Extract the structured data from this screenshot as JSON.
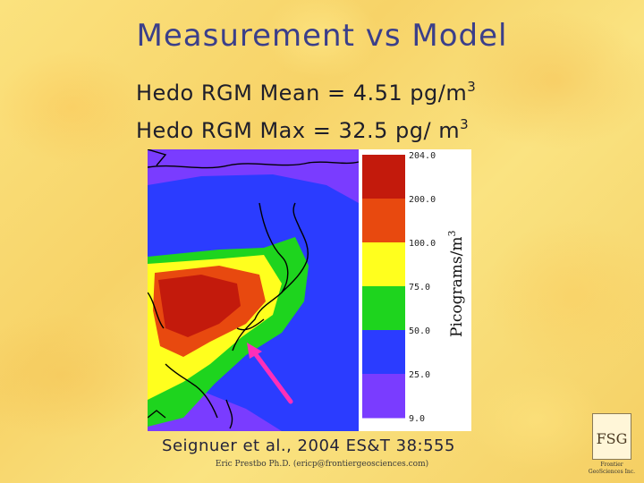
{
  "slide": {
    "title": "Measurement vs Model",
    "stats": [
      {
        "text": "Hedo RGM Mean = 4.51 pg/m",
        "sup": "3"
      },
      {
        "text": "Hedo RGM Max = 32.5 pg/ m",
        "sup": "3"
      }
    ],
    "citation": "Seignuer et al., 2004 ES&T 38:555",
    "footer": "Eric Prestbo Ph.D. (ericp@frontiergeosciences.com)"
  },
  "colorbar": {
    "label": "Picograms/m",
    "label_sup": "3",
    "ticks": [
      "204.0",
      "200.0",
      "100.0",
      "75.0",
      "50.0",
      "25.0",
      "9.0"
    ],
    "colors": [
      "#c31a0c",
      "#e8490f",
      "#ffff1e",
      "#1ed41e",
      "#2b3cff",
      "#7a3cff"
    ]
  },
  "logo": {
    "letters": "FSG",
    "line1": "Frontier",
    "line2": "GeoSciences Inc."
  },
  "annotation": {
    "arrow_color": "#ff2fb8"
  }
}
